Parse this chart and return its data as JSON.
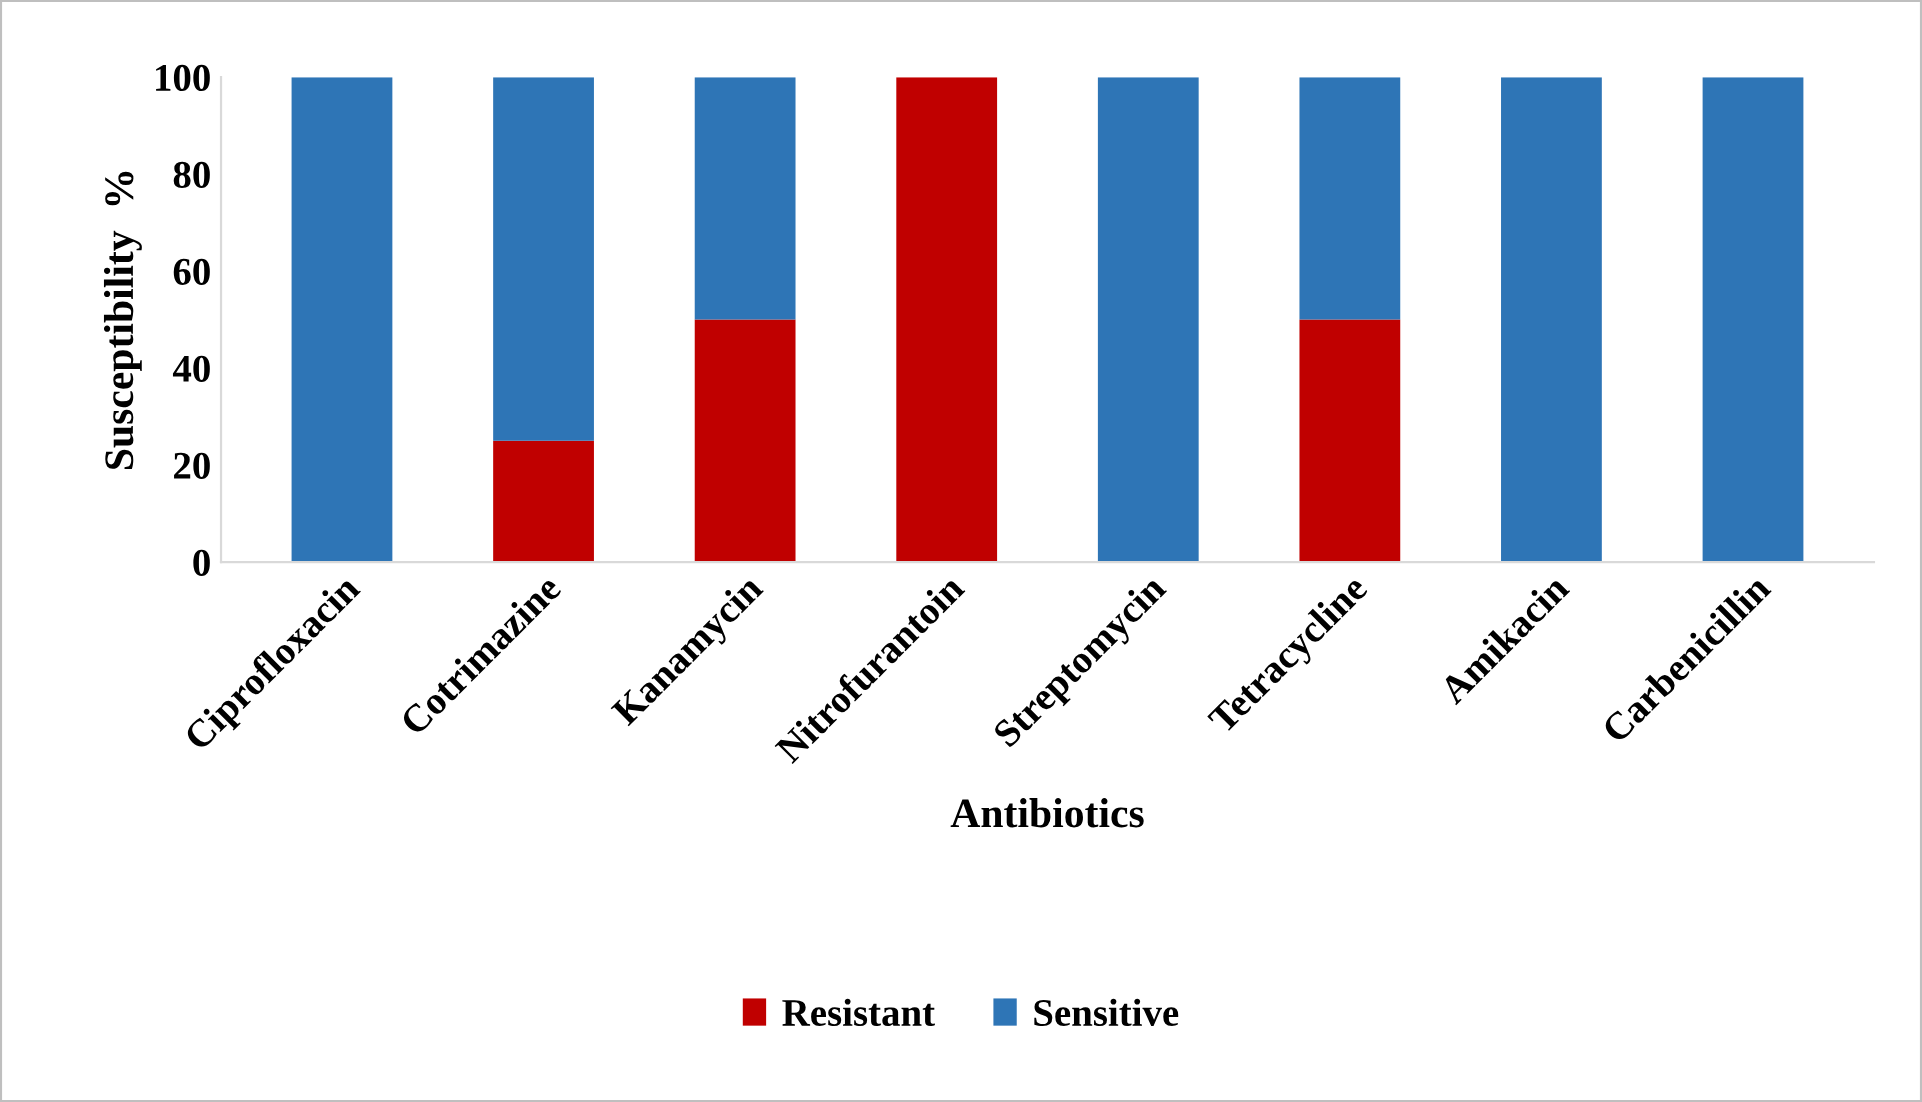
{
  "chart_data": {
    "type": "bar",
    "stacked": true,
    "xlabel": "Antibiotics",
    "ylabel": "Susceptibility  %",
    "categories": [
      "Ciprofloxacin",
      "Cotrimazine",
      "Kanamycin",
      "Nitrofurantoin",
      "Streptomycin",
      "Tetracycline",
      "Amikacin",
      "Carbenicillin"
    ],
    "series": [
      {
        "name": "Resistant",
        "color": "#c00000",
        "values": [
          0,
          25,
          50,
          100,
          0,
          50,
          0,
          0
        ]
      },
      {
        "name": "Sensitive",
        "color": "#2e75b6",
        "values": [
          100,
          75,
          50,
          0,
          100,
          50,
          100,
          100
        ]
      }
    ],
    "ylim": [
      0,
      100
    ],
    "yticks": [
      0,
      20,
      40,
      60,
      80,
      100
    ],
    "grid": false,
    "legend": "bottom"
  }
}
